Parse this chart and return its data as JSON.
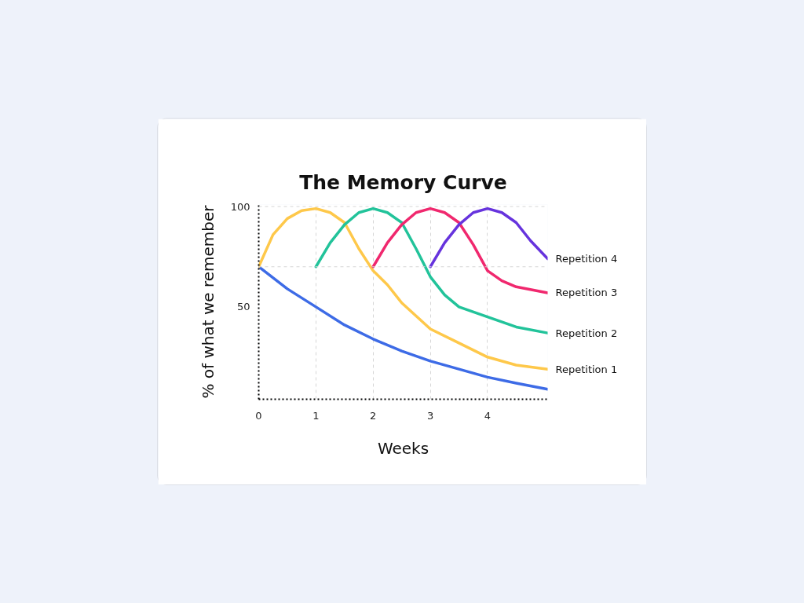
{
  "chart_data": {
    "type": "line",
    "title": "The Memory Curve",
    "xlabel": "Weeks",
    "ylabel": "% of what we remember",
    "xlim": [
      0,
      5.05
    ],
    "ylim": [
      4,
      101
    ],
    "xticks": [
      0,
      1,
      2,
      3,
      4
    ],
    "yticks": [
      50,
      100
    ],
    "grid": "x",
    "marker": "none",
    "line_style": "solid",
    "ref_lines": [
      {
        "axis": "y",
        "value": 70,
        "color": "#d6d6d6",
        "line_style": "dashed"
      },
      {
        "axis": "y",
        "value": 100,
        "color": "#d6d6d6",
        "line_style": "dashed"
      }
    ],
    "series": [
      {
        "color": "#3d6be6",
        "x": [
          0,
          0.5,
          1,
          1.5,
          2,
          2.5,
          3,
          3.5,
          4,
          4.5,
          5.05
        ],
        "values": [
          70,
          59,
          50,
          41,
          34,
          28,
          23,
          19,
          15,
          12,
          9
        ]
      },
      {
        "name": "Repetition 1",
        "color": "#fec84a",
        "x": [
          0,
          0.25,
          0.5,
          0.75,
          1,
          1.25,
          1.5,
          1.75,
          2,
          2.25,
          2.5,
          3,
          3.5,
          4,
          4.5,
          5.05
        ],
        "values": [
          70,
          86,
          94,
          98,
          99,
          97,
          92,
          79,
          68,
          61,
          52,
          39,
          32,
          25,
          21,
          19
        ]
      },
      {
        "name": "Repetition 2",
        "color": "#22c39a",
        "x": [
          1,
          1.25,
          1.5,
          1.75,
          2,
          2.25,
          2.5,
          2.75,
          3,
          3.25,
          3.5,
          4,
          4.5,
          5.05
        ],
        "values": [
          70,
          82,
          91,
          97,
          99,
          97,
          92,
          79,
          65,
          56,
          50,
          45,
          40,
          37
        ]
      },
      {
        "name": "Repetition 3",
        "color": "#f0286e",
        "x": [
          2,
          2.25,
          2.5,
          2.75,
          3,
          3.25,
          3.5,
          3.75,
          4,
          4.25,
          4.5,
          5.05
        ],
        "values": [
          70,
          82,
          91,
          97,
          99,
          97,
          92,
          81,
          68,
          63,
          60,
          57
        ]
      },
      {
        "name": "Repetition 4",
        "color": "#6633dd",
        "x": [
          3,
          3.25,
          3.5,
          3.75,
          4,
          4.25,
          4.5,
          4.75,
          5.05
        ],
        "values": [
          70,
          82,
          91,
          97,
          99,
          97,
          92,
          83,
          74
        ]
      }
    ]
  }
}
